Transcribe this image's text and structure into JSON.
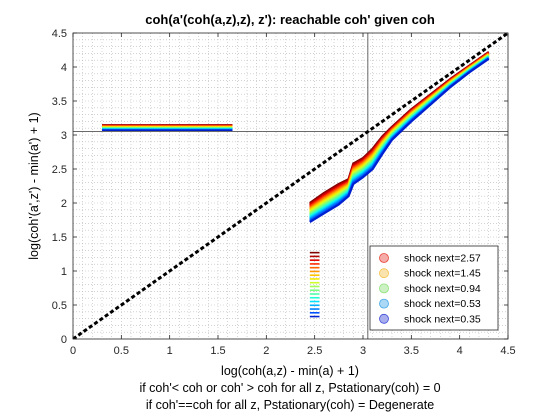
{
  "chart_data": {
    "type": "line",
    "title": "coh(a'(coh(a,z),z), z'): reachable coh' given coh",
    "xlabel_lines": [
      "log(coh(a,z) - min(a) + 1)",
      "if coh'< coh or coh' > coh for all z, Pstationary(coh) = 0",
      "if coh'==coh for all z, Pstationary(coh) = Degenerate"
    ],
    "ylabel": "log(coh'(a',z') - min(a') + 1)",
    "xlim": [
      0,
      4.5
    ],
    "ylim": [
      0,
      4.5
    ],
    "xticks": [
      "0",
      "0.5",
      "1",
      "1.5",
      "2",
      "2.5",
      "3",
      "3.5",
      "4",
      "4.5"
    ],
    "yticks": [
      "0",
      "0.5",
      "1",
      "1.5",
      "2",
      "2.5",
      "3",
      "3.5",
      "4",
      "4.5"
    ],
    "grid": "minor-dotted",
    "reference_lines": {
      "x": 3.05,
      "y": 3.05
    },
    "diagonal": "45-degree dashed black",
    "legend_position": "lower-right",
    "legend": [
      {
        "label": "shock next=2.57",
        "color": "#e8453c"
      },
      {
        "label": "shock next=1.45",
        "color": "#f5c24a"
      },
      {
        "label": "shock next=0.94",
        "color": "#8fe07a"
      },
      {
        "label": "shock next=0.53",
        "color": "#45a9e6"
      },
      {
        "label": "shock next=0.35",
        "color": "#3b49d8"
      }
    ],
    "bands": {
      "count": 18,
      "colors_top_to_bottom": [
        "#7f0000",
        "#b00000",
        "#dd0000",
        "#ff2a00",
        "#ff6000",
        "#ff9500",
        "#ffc400",
        "#f2ea00",
        "#cfff2a",
        "#a2ff55",
        "#78ff7f",
        "#4dffaa",
        "#1fffd6",
        "#00e0ff",
        "#00b0ff",
        "#0080ff",
        "#0050ff",
        "#0020d0"
      ],
      "upper_band": {
        "x": [
          0.3,
          1.65
        ],
        "y_top": 3.15,
        "y_bottom": 3.07
      },
      "lower_band": {
        "x": [
          2.45,
          2.55
        ],
        "y_top": 1.27,
        "y_bottom": 0.33
      },
      "main_curve": {
        "x": [
          2.45,
          2.6,
          2.75,
          2.85,
          2.9,
          3.0,
          3.1,
          3.2,
          3.3,
          3.5,
          3.7,
          3.9,
          4.1,
          4.3
        ],
        "y_top": [
          2.0,
          2.15,
          2.28,
          2.35,
          2.58,
          2.66,
          2.8,
          2.98,
          3.12,
          3.38,
          3.6,
          3.82,
          4.02,
          4.22
        ],
        "y_bottom": [
          1.72,
          1.85,
          1.98,
          2.1,
          2.28,
          2.38,
          2.5,
          2.72,
          2.93,
          3.2,
          3.45,
          3.7,
          3.92,
          4.12
        ]
      }
    }
  }
}
